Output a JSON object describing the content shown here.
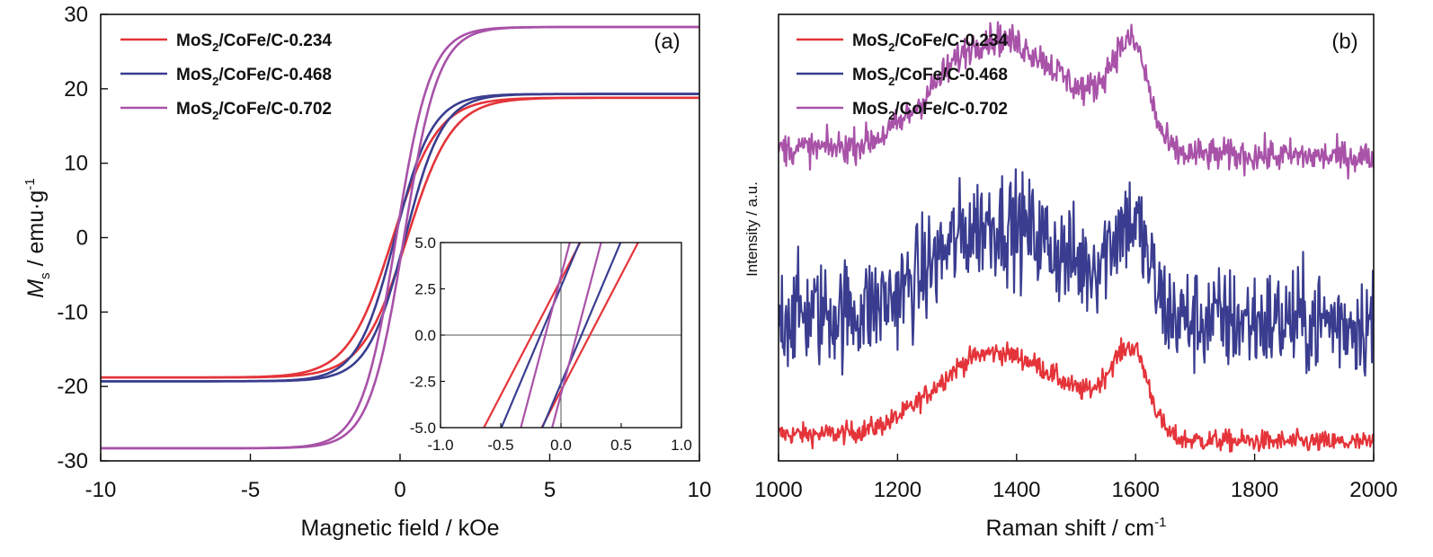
{
  "chart_data": [
    {
      "panel_label": "(a)",
      "type": "line",
      "xlabel": "Magnetic field / kOe",
      "ylabel_main": "M",
      "ylabel_sub": "s",
      "ylabel_rest": " / emu·g",
      "ylabel_sup": "-1",
      "xlim": [
        -10,
        10
      ],
      "ylim": [
        -30,
        30
      ],
      "xticks": [
        -10,
        -5,
        0,
        5,
        10
      ],
      "xtick_labels": [
        "-10",
        "-5",
        "0",
        "5",
        "10"
      ],
      "yticks": [
        -30,
        -20,
        -10,
        0,
        10,
        20,
        30
      ],
      "ytick_labels": [
        "-30",
        "-20",
        "-10",
        "0",
        "10",
        "20",
        "30"
      ],
      "legend_position": "top-left",
      "series": [
        {
          "label_pre": "MoS",
          "label_sub": "2",
          "label_post": "/CoFe/C-0.234",
          "color": "#e4343a",
          "Ms": 18.8,
          "Hc": 0.24,
          "H0": 1.5
        },
        {
          "label_pre": "MoS",
          "label_sub": "2",
          "label_post": "/CoFe/C-0.468",
          "color": "#3a3d8f",
          "Ms": 19.3,
          "Hc": 0.17,
          "H0": 1.25
        },
        {
          "label_pre": "MoS",
          "label_sub": "2",
          "label_post": "/CoFe/C-0.702",
          "color": "#a852a8",
          "Ms": 28.3,
          "Hc": 0.13,
          "H0": 1.15
        }
      ],
      "inset": {
        "xlim": [
          -1.0,
          1.0
        ],
        "ylim": [
          -5.0,
          5.0
        ],
        "xticks": [
          -1.0,
          -0.5,
          0.0,
          0.5,
          1.0
        ],
        "xtick_labels": [
          "-1.0",
          "-0.5",
          "0.0",
          "0.5",
          "1.0"
        ],
        "yticks": [
          -5.0,
          -2.5,
          0.0,
          2.5,
          5.0
        ],
        "ytick_labels": [
          "-5.0",
          "-2.5",
          "0.0",
          "2.5",
          "5.0"
        ],
        "series": [
          {
            "color": "#e4343a",
            "coercivity": 0.24,
            "slope_at_zero": 12.5
          },
          {
            "color": "#3a3d8f",
            "coercivity": 0.17,
            "slope_at_zero": 15.4
          },
          {
            "color": "#a852a8",
            "coercivity": 0.13,
            "slope_at_zero": 24.6
          }
        ]
      }
    },
    {
      "panel_label": "(b)",
      "type": "line",
      "xlabel_main": "Raman shift / cm",
      "xlabel_sup": "-1",
      "ylabel": "Intensity / a.u.",
      "xlim": [
        1000,
        2000
      ],
      "xticks": [
        1000,
        1200,
        1400,
        1600,
        1800,
        2000
      ],
      "xtick_labels": [
        "1000",
        "1200",
        "1400",
        "1600",
        "1800",
        "2000"
      ],
      "y_ticks_shown": false,
      "legend_position": "top-left",
      "bands": {
        "D": 1350,
        "G": 1595
      },
      "series": [
        {
          "label_pre": "MoS",
          "label_sub": "2",
          "label_post": "/CoFe/C-0.234",
          "color": "#e4343a",
          "offset": 0.06,
          "D_height": 0.18,
          "G_height": 0.19,
          "noise": 0.012
        },
        {
          "label_pre": "MoS",
          "label_sub": "2",
          "label_post": "/CoFe/C-0.468",
          "color": "#3a3d8f",
          "offset": 0.33,
          "D_height": 0.2,
          "G_height": 0.2,
          "noise": 0.06
        },
        {
          "label_pre": "MoS",
          "label_sub": "2",
          "label_post": "/CoFe/C-0.702",
          "color": "#a852a8",
          "offset": 0.7,
          "D_height": 0.24,
          "G_height": 0.23,
          "noise": 0.018
        }
      ]
    }
  ]
}
